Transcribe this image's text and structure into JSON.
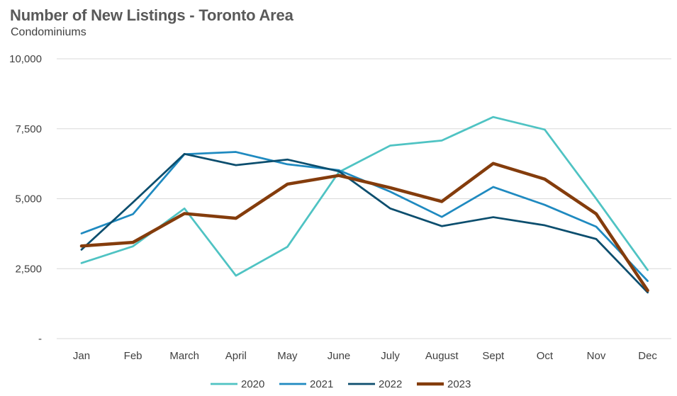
{
  "chart_data": {
    "type": "line",
    "title": "Number of New Listings - Toronto Area",
    "subtitle": "Condominiums",
    "categories": [
      "Jan",
      "Feb",
      "March",
      "April",
      "May",
      "June",
      "July",
      "August",
      "Sept",
      "Oct",
      "Nov",
      "Dec"
    ],
    "ylim": [
      0,
      10000
    ],
    "yticks": [
      0,
      2500,
      5000,
      7500,
      10000
    ],
    "ytick_labels": [
      "-",
      "2,500",
      "5,000",
      "7,500",
      "10,000"
    ],
    "grid": "horizontal",
    "legend_position": "bottom",
    "series": [
      {
        "name": "2020",
        "color": "#4fc3c3",
        "values": [
          2700,
          3300,
          4650,
          2250,
          3280,
          5950,
          6900,
          7080,
          7920,
          7470,
          5000,
          2450
        ]
      },
      {
        "name": "2021",
        "color": "#1f8ac0",
        "values": [
          3760,
          4450,
          6590,
          6670,
          6230,
          6020,
          5250,
          4350,
          5420,
          4780,
          4000,
          2060
        ]
      },
      {
        "name": "2022",
        "color": "#0c4e6e",
        "values": [
          3180,
          4870,
          6600,
          6200,
          6400,
          5980,
          4650,
          4020,
          4340,
          4050,
          3560,
          1650
        ]
      },
      {
        "name": "2023",
        "color": "#843c0c",
        "values": [
          3310,
          3440,
          4470,
          4300,
          5520,
          5830,
          5390,
          4900,
          6260,
          5700,
          4460,
          1720
        ]
      }
    ]
  }
}
